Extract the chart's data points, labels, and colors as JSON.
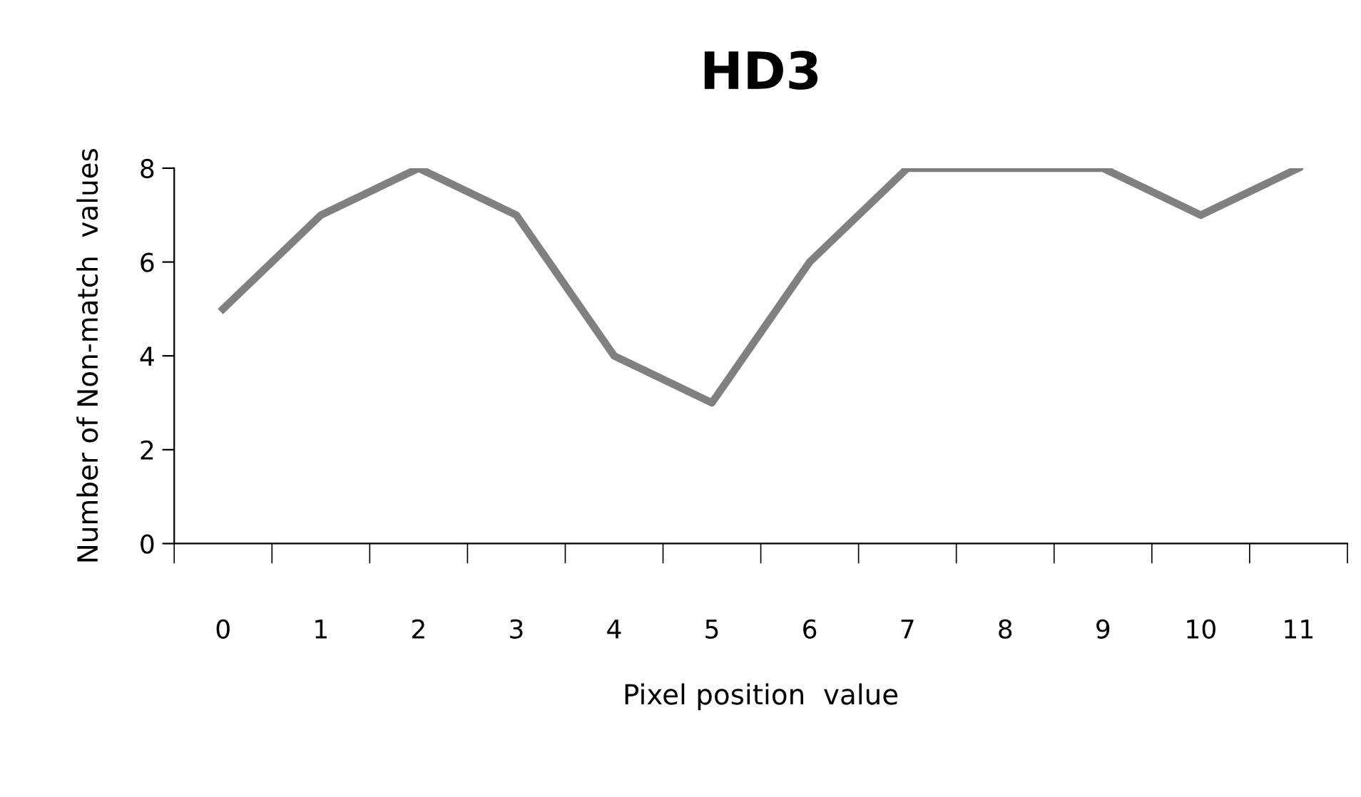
{
  "chart_data": {
    "type": "line",
    "title": "HD3",
    "xlabel": "Pixel position  value",
    "ylabel": "Number of Non-match  values",
    "categories": [
      "0",
      "1",
      "2",
      "3",
      "4",
      "5",
      "6",
      "7",
      "8",
      "9",
      "10",
      "11"
    ],
    "series": [
      {
        "color": "#808080",
        "values": [
          5,
          7,
          8,
          7,
          4,
          3,
          6,
          8,
          8,
          8,
          7,
          8
        ]
      }
    ],
    "ylim": [
      0,
      8
    ],
    "yticks": [
      0,
      2,
      4,
      6,
      8
    ],
    "grid": false,
    "legend": false,
    "marker": "none",
    "line_style": "solid"
  }
}
